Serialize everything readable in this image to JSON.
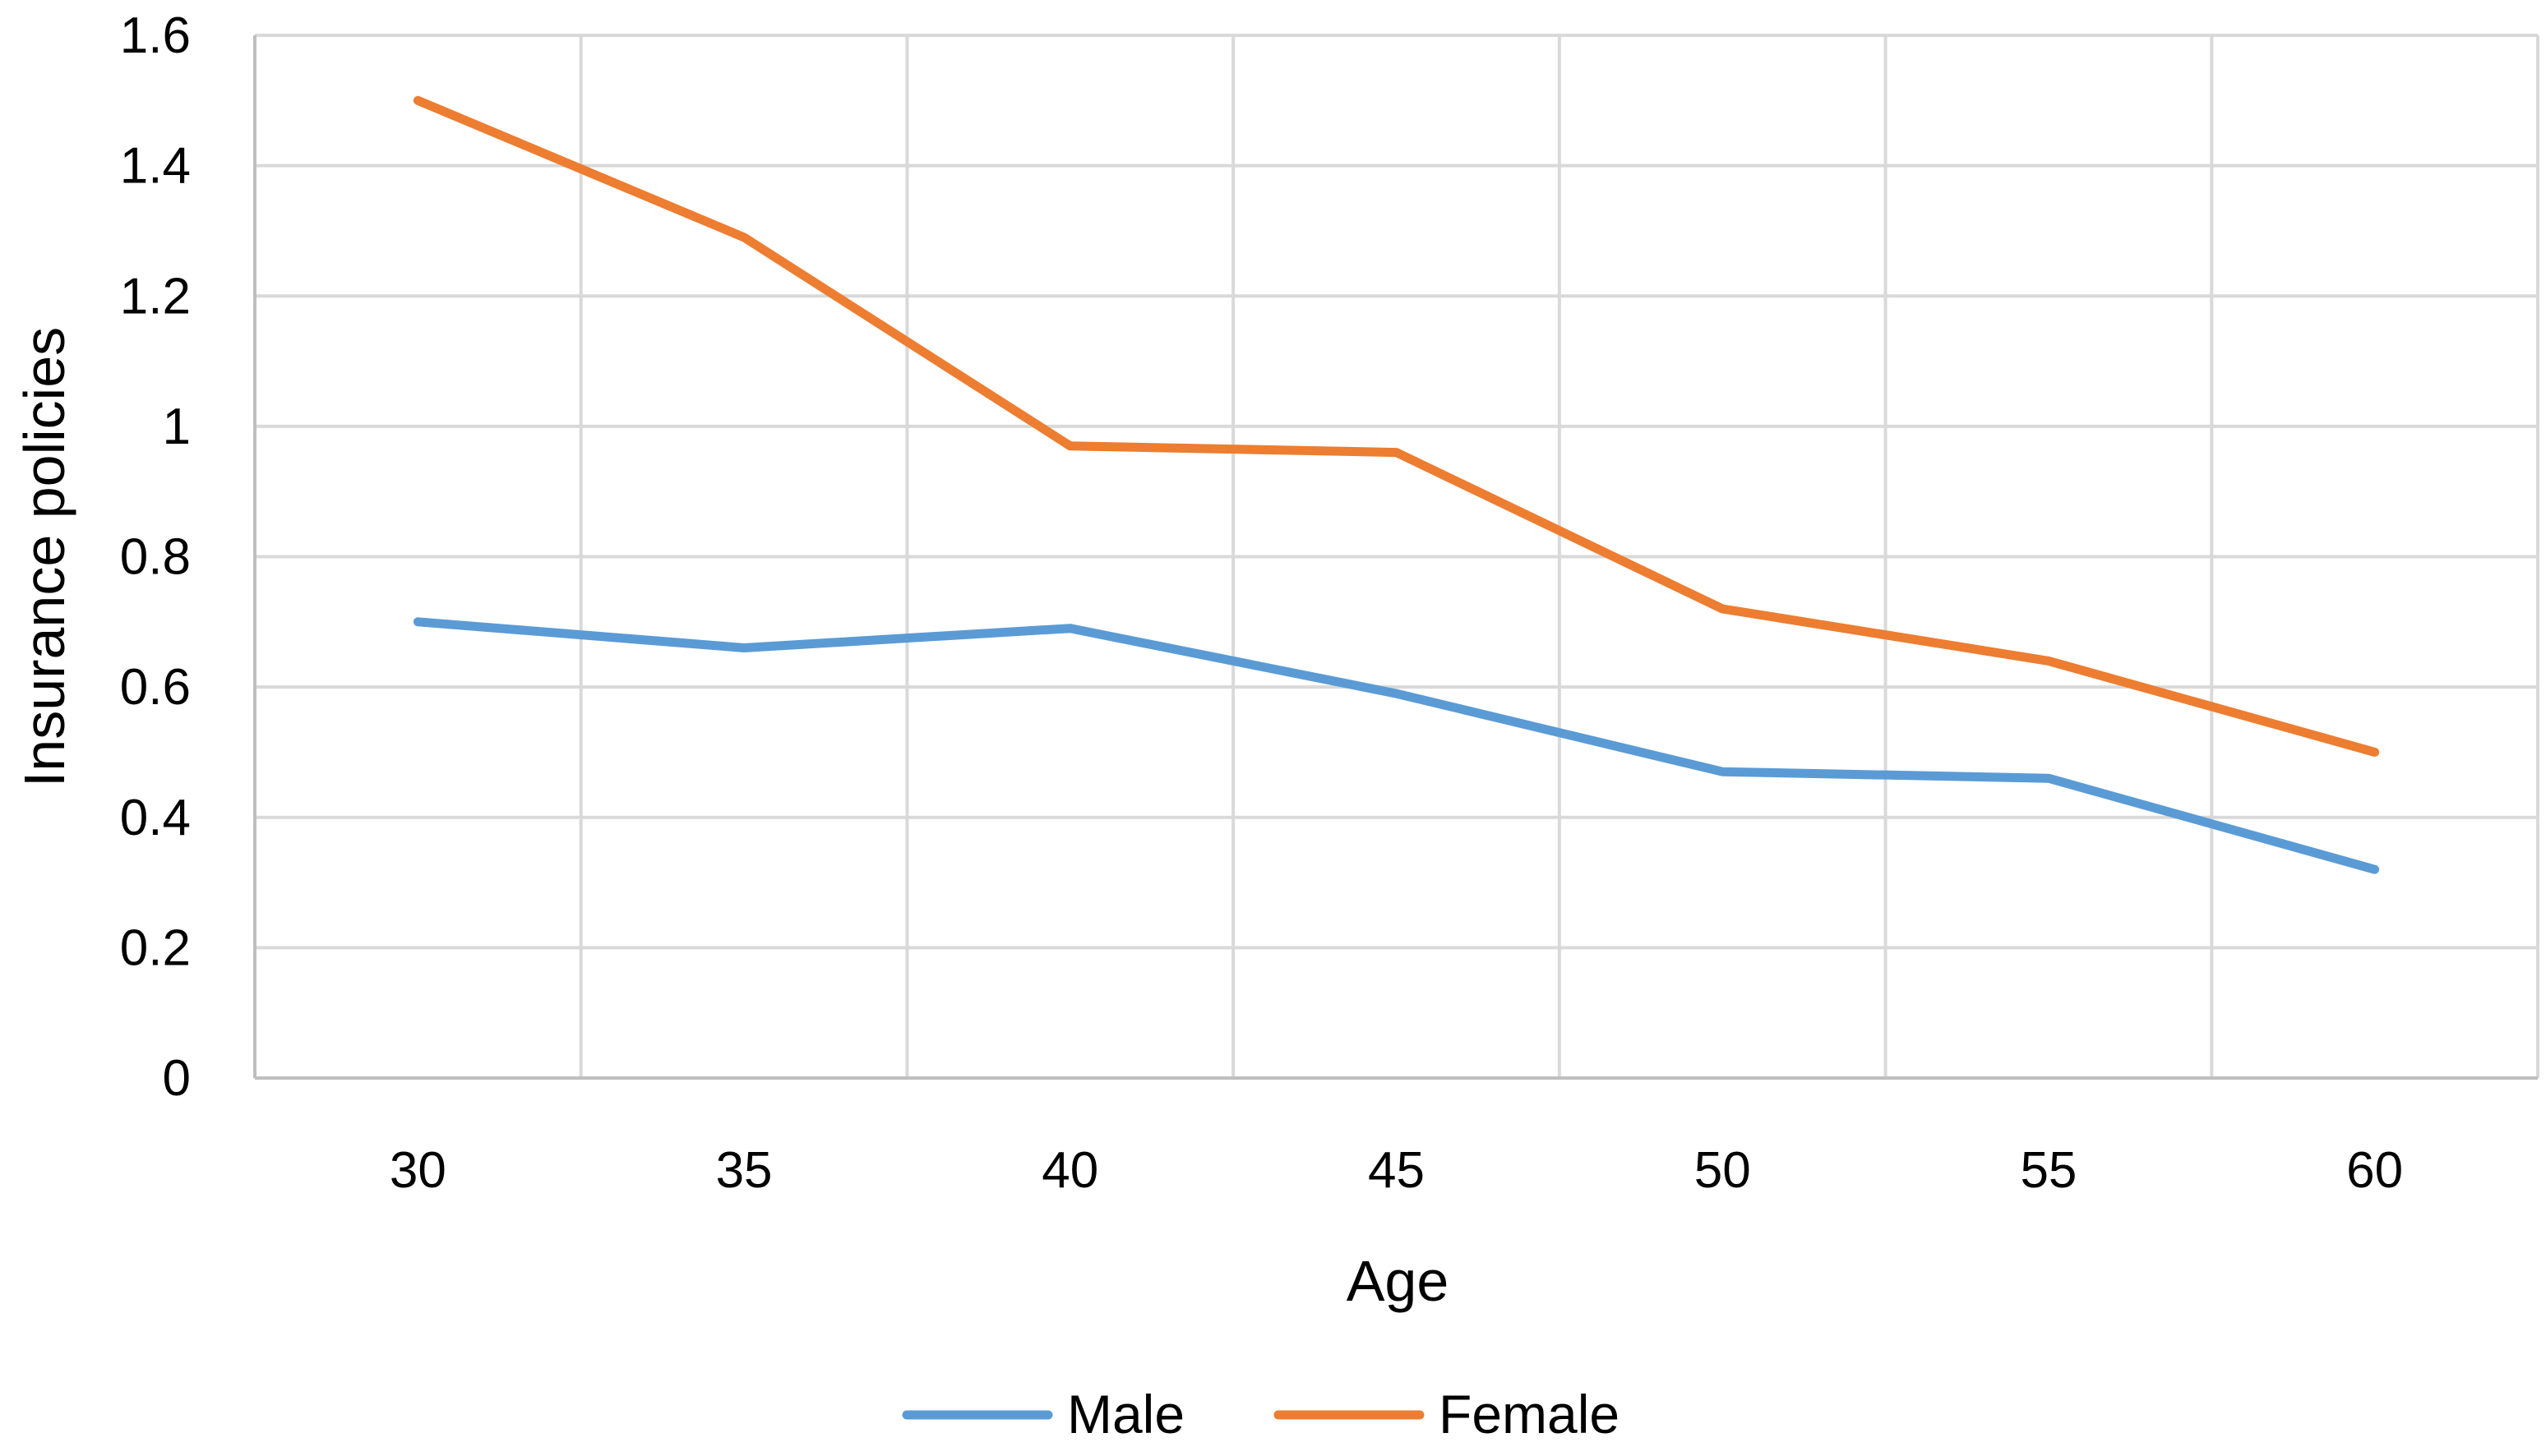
{
  "chart_data": {
    "type": "line",
    "title": "",
    "xlabel": "Age",
    "ylabel": "Insurance policies",
    "categories": [
      "30",
      "35",
      "40",
      "45",
      "50",
      "55",
      "60"
    ],
    "yticks": [
      "0",
      "0.2",
      "0.4",
      "0.6",
      "0.8",
      "1",
      "1.2",
      "1.4",
      "1.6"
    ],
    "ylim": [
      0,
      1.6
    ],
    "grid": true,
    "legend_position": "bottom",
    "series": [
      {
        "name": "Male",
        "color": "#5B9BD5",
        "values": [
          0.7,
          0.66,
          0.69,
          0.59,
          0.47,
          0.46,
          0.32
        ]
      },
      {
        "name": "Female",
        "color": "#ED7D31",
        "values": [
          1.5,
          1.29,
          0.97,
          0.96,
          0.72,
          0.64,
          0.5
        ]
      }
    ]
  }
}
